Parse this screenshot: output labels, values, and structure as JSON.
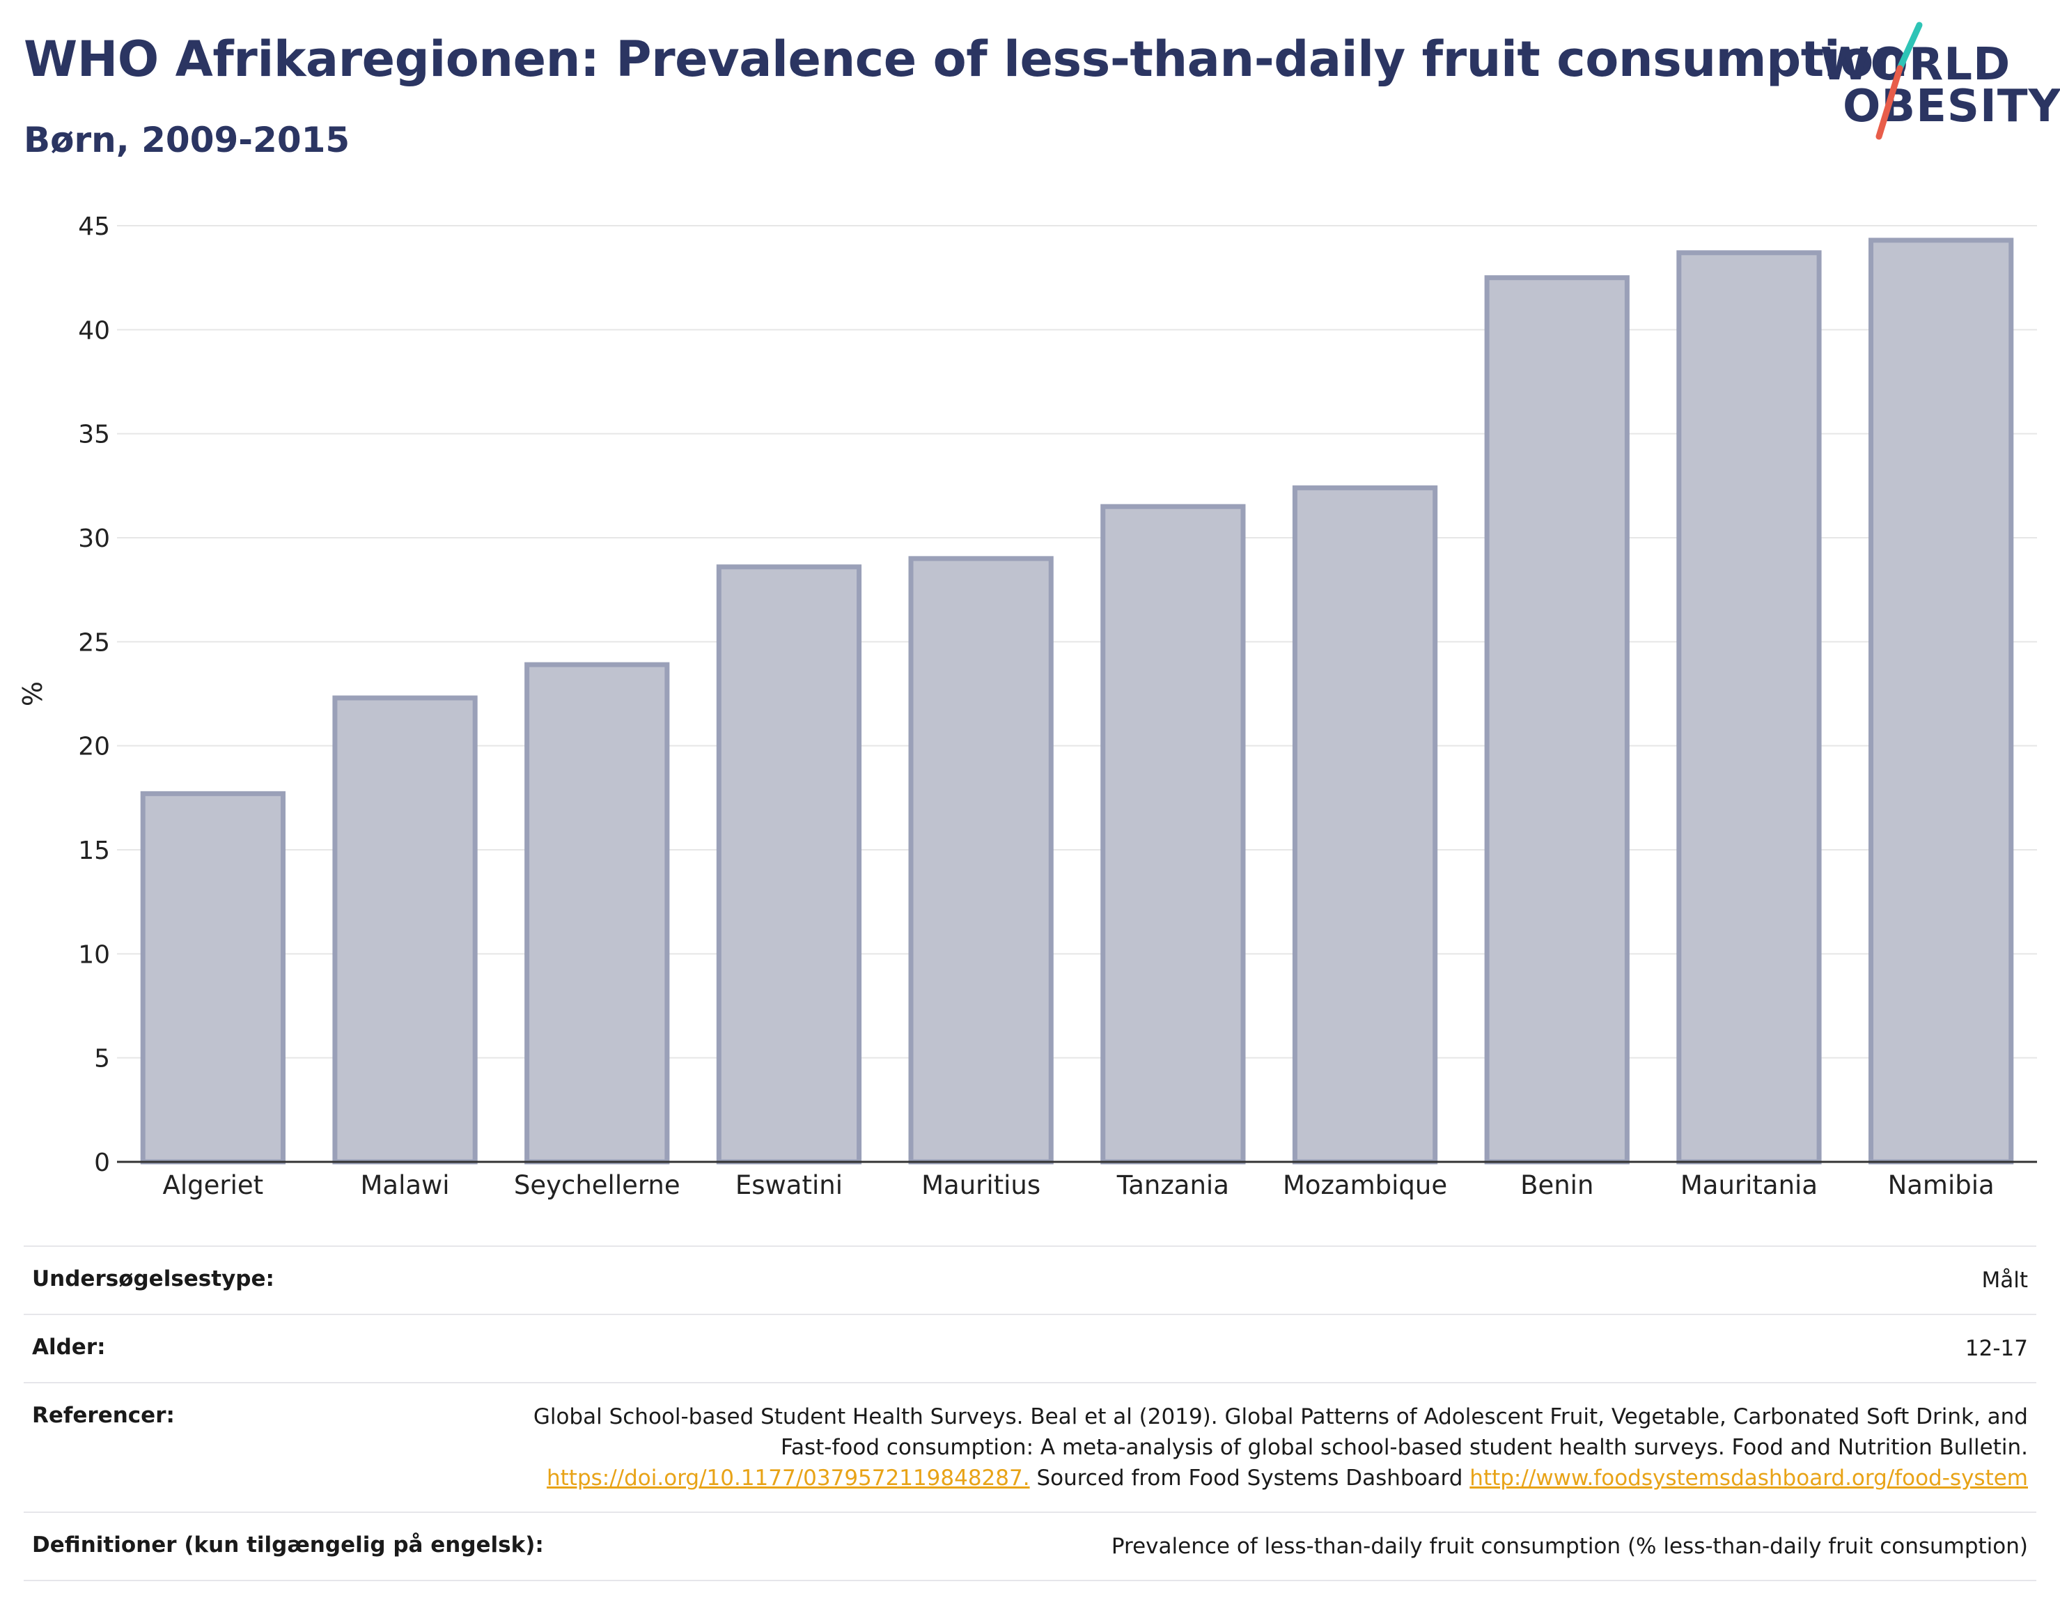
{
  "header": {
    "title": "WHO Afrikaregionen: Prevalence of less-than-daily fruit consumption",
    "subtitle": "Børn, 2009-2015"
  },
  "logo": {
    "line1": "WORLD",
    "line2": "OBESITY",
    "slash_colors": [
      "#2ec4b6",
      "#e85d4a"
    ],
    "text_color": "#2b3562"
  },
  "chart_data": {
    "type": "bar",
    "categories": [
      "Algeriet",
      "Malawi",
      "Seychellerne",
      "Eswatini",
      "Mauritius",
      "Tanzania",
      "Mozambique",
      "Benin",
      "Mauritania",
      "Namibia"
    ],
    "values": [
      17.7,
      22.3,
      23.9,
      28.6,
      29.0,
      31.5,
      32.4,
      42.5,
      43.7,
      44.3
    ],
    "ylabel": "%",
    "xlabel": "",
    "ylim": [
      0,
      45
    ],
    "yticks": [
      0,
      5,
      10,
      15,
      20,
      25,
      30,
      35,
      40,
      45
    ],
    "grid": true,
    "bar_fill": "#bfc2cf",
    "bar_stroke": "#9aa0b8"
  },
  "meta": [
    {
      "label": "Undersøgelsestype:",
      "value": "Målt"
    },
    {
      "label": "Alder:",
      "value": "12-17"
    },
    {
      "label": "Referencer:",
      "value_text": "Global School-based Student Health Surveys. Beal et al (2019). Global Patterns of Adolescent Fruit, Vegetable, Carbonated Soft Drink, and Fast-food consumption: A meta-analysis of global school-based student health surveys. Food and Nutrition Bulletin.",
      "link1": "https://doi.org/10.1177/0379572119848287.",
      "mid_text": "Sourced from Food Systems Dashboard",
      "link2": "http://www.foodsystemsdashboard.org/food-system"
    },
    {
      "label": "Definitioner (kun tilgængelig på engelsk):",
      "value": "Prevalence of less-than-daily fruit consumption (% less-than-daily fruit consumption)"
    }
  ]
}
